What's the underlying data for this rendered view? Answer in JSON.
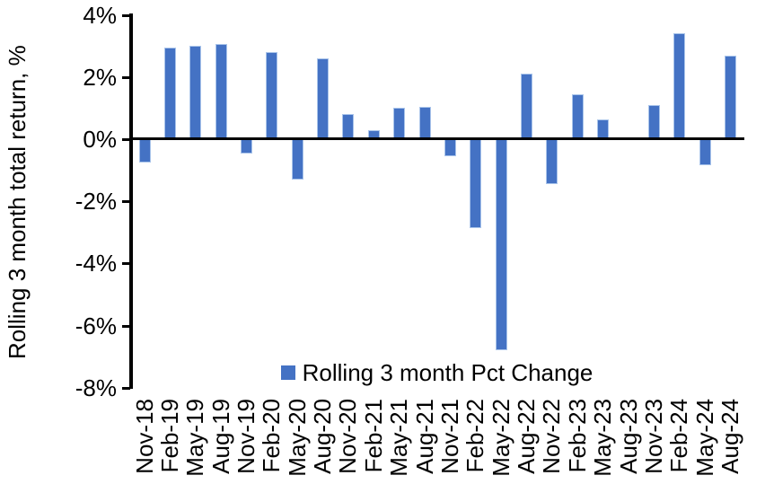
{
  "chart_data": {
    "type": "bar",
    "categories": [
      "Nov-18",
      "Feb-19",
      "May-19",
      "Aug-19",
      "Nov-19",
      "Feb-20",
      "May-20",
      "Aug-20",
      "Nov-20",
      "Feb-21",
      "May-21",
      "Aug-21",
      "Nov-21",
      "Feb-22",
      "May-22",
      "Aug-22",
      "Nov-22",
      "Feb-23",
      "May-23",
      "Aug-23",
      "Nov-23",
      "Feb-24",
      "May-24",
      "Aug-24"
    ],
    "values": [
      -0.75,
      2.95,
      3.0,
      3.05,
      -0.45,
      2.8,
      -1.3,
      2.6,
      0.8,
      0.3,
      1.0,
      1.05,
      -0.55,
      -2.85,
      -6.8,
      2.1,
      -1.45,
      1.45,
      0.65,
      0,
      1.1,
      3.4,
      -0.85,
      2.7
    ],
    "series_name": "Rolling 3 month Pct Change",
    "title": "",
    "xlabel": "",
    "ylabel": "Rolling 3 month total return, %",
    "ylim": [
      -8,
      4
    ],
    "ytick_values": [
      4,
      2,
      0,
      -2,
      -4,
      -6,
      -8
    ],
    "ytick_labels": [
      "4%",
      "2%",
      "0%",
      "-2%",
      "-4%",
      "-6%",
      "-8%"
    ],
    "grid": false,
    "legend_position": "bottom-center",
    "x_labels_rotated_degrees": 90,
    "colors": {
      "bar_fill": "#4472C4",
      "bar_border": "#A9C4EA",
      "axis": "#000000",
      "text": "#000000",
      "background": "#FFFFFF"
    }
  }
}
